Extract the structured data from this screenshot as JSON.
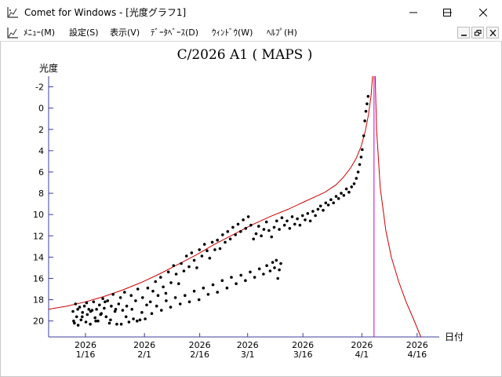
{
  "window": {
    "title": "Comet for Windows - [光度グラフ1]",
    "controls": {
      "minimize": "minimize-icon",
      "maximize": "maximize-icon",
      "close": "close-icon"
    }
  },
  "menu": {
    "items": [
      {
        "label": "ﾒﾆｭｰ(M)"
      },
      {
        "label": "設定(S)"
      },
      {
        "label": "表示(V)"
      },
      {
        "label": "ﾃﾞｰﾀﾍﾞｰｽ(D)"
      },
      {
        "label": "ｳｨﾝﾄﾞｳ(W)"
      },
      {
        "label": "ﾍﾙﾌﾟ(H)"
      }
    ],
    "mdi_controls": {
      "minimize": "mdi-minimize-icon",
      "restore": "mdi-restore-icon",
      "close": "mdi-close-icon"
    }
  },
  "colors": {
    "axis": "#3c3c9c",
    "curve": "#cc0000",
    "perihelion_line": "#cc00cc",
    "points": "#000000"
  },
  "chart_data": {
    "type": "scatter",
    "title": "C/2026 A1 ( MAPS )",
    "ylabel": "光度",
    "xlabel": "日付",
    "y_inverted": true,
    "ylim": [
      -3,
      21.5
    ],
    "y_ticks": [
      "-2",
      "0",
      "2",
      "4",
      "6",
      "8",
      "10",
      "12",
      "14",
      "16",
      "18",
      "20"
    ],
    "x_ticks": [
      {
        "year": "2026",
        "date": "1/16"
      },
      {
        "year": "2026",
        "date": "2/1"
      },
      {
        "year": "2026",
        "date": "2/16"
      },
      {
        "year": "2026",
        "date": "3/1"
      },
      {
        "year": "2026",
        "date": "3/16"
      },
      {
        "year": "2026",
        "date": "4/1"
      },
      {
        "year": "2026",
        "date": "4/16"
      }
    ],
    "x_tick_days": [
      0,
      16,
      31,
      44,
      59,
      75,
      90
    ],
    "xlim": [
      -10,
      96
    ],
    "perihelion_day": 78.3,
    "series": [
      {
        "values": [
          [
            -3.4,
            19.1
          ],
          [
            -3.0,
            20.2
          ],
          [
            -2.7,
            18.4
          ],
          [
            -2.4,
            19.6
          ],
          [
            -2.0,
            20.4
          ],
          [
            -1.6,
            18.7
          ],
          [
            -1.2,
            19.9
          ],
          [
            -0.8,
            19.2
          ],
          [
            -0.3,
            18.6
          ],
          [
            0.1,
            20.1
          ],
          [
            0.5,
            19.4
          ],
          [
            0.9,
            18.9
          ],
          [
            1.3,
            20.3
          ],
          [
            1.8,
            19.0
          ],
          [
            2.2,
            18.2
          ],
          [
            2.6,
            19.7
          ],
          [
            3.0,
            18.9
          ],
          [
            3.4,
            20.0
          ],
          [
            3.8,
            18.5
          ],
          [
            4.3,
            19.3
          ],
          [
            4.7,
            17.9
          ],
          [
            5.1,
            18.8
          ],
          [
            5.6,
            19.6
          ],
          [
            6.0,
            18.1
          ],
          [
            6.5,
            20.2
          ],
          [
            7.0,
            18.6
          ],
          [
            7.5,
            17.5
          ],
          [
            8.0,
            19.1
          ],
          [
            8.5,
            20.3
          ],
          [
            9.0,
            18.4
          ],
          [
            9.5,
            17.8
          ],
          [
            10.1,
            19.0
          ],
          [
            10.6,
            17.3
          ],
          [
            11.2,
            18.6
          ],
          [
            11.8,
            20.1
          ],
          [
            12.4,
            17.6
          ],
          [
            13.0,
            19.8
          ],
          [
            13.6,
            18.1
          ],
          [
            14.2,
            17.0
          ],
          [
            14.8,
            19.9
          ],
          [
            15.5,
            17.8
          ],
          [
            16.2,
            19.8
          ],
          [
            16.9,
            16.9
          ],
          [
            17.6,
            18.2
          ],
          [
            18.3,
            17.2
          ],
          [
            19.0,
            16.3
          ],
          [
            19.7,
            17.6
          ],
          [
            20.4,
            15.9
          ],
          [
            21.1,
            16.8
          ],
          [
            21.8,
            17.4
          ],
          [
            22.5,
            15.4
          ],
          [
            23.2,
            16.4
          ],
          [
            23.9,
            14.8
          ],
          [
            24.6,
            15.6
          ],
          [
            25.3,
            16.5
          ],
          [
            26.0,
            14.6
          ],
          [
            26.7,
            15.3
          ],
          [
            27.4,
            13.9
          ],
          [
            28.1,
            14.9
          ],
          [
            28.8,
            13.6
          ],
          [
            29.5,
            14.3
          ],
          [
            30.2,
            15.0
          ],
          [
            30.9,
            13.3
          ],
          [
            31.6,
            13.9
          ],
          [
            32.3,
            12.8
          ],
          [
            33.0,
            13.4
          ],
          [
            33.7,
            14.1
          ],
          [
            34.4,
            12.6
          ],
          [
            35.1,
            13.3
          ],
          [
            35.8,
            12.4
          ],
          [
            36.5,
            13.2
          ],
          [
            37.2,
            11.9
          ],
          [
            37.9,
            12.6
          ],
          [
            38.6,
            11.6
          ],
          [
            39.3,
            12.3
          ],
          [
            40.0,
            11.2
          ],
          [
            40.7,
            11.9
          ],
          [
            41.4,
            10.9
          ],
          [
            42.1,
            11.6
          ],
          [
            42.8,
            10.5
          ],
          [
            43.5,
            11.3
          ],
          [
            44.2,
            10.2
          ],
          [
            44.9,
            11.0
          ],
          [
            45.6,
            12.3
          ],
          [
            46.3,
            11.8
          ],
          [
            47.0,
            11.1
          ],
          [
            47.7,
            12.0
          ],
          [
            48.4,
            11.4
          ],
          [
            49.1,
            10.7
          ],
          [
            49.8,
            11.5
          ],
          [
            50.5,
            12.1
          ],
          [
            51.2,
            11.2
          ],
          [
            51.9,
            10.6
          ],
          [
            52.6,
            11.4
          ],
          [
            53.3,
            10.3
          ],
          [
            54.0,
            11.0
          ],
          [
            54.7,
            10.6
          ],
          [
            55.4,
            11.3
          ],
          [
            56.1,
            10.2
          ],
          [
            56.8,
            10.9
          ],
          [
            57.5,
            10.4
          ],
          [
            58.2,
            11.0
          ],
          [
            58.9,
            10.1
          ],
          [
            59.6,
            10.5
          ],
          [
            60.3,
            9.9
          ],
          [
            61.0,
            10.6
          ],
          [
            61.7,
            9.7
          ],
          [
            62.4,
            10.1
          ],
          [
            63.1,
            9.5
          ],
          [
            63.8,
            9.2
          ],
          [
            64.5,
            9.6
          ],
          [
            65.2,
            8.9
          ],
          [
            65.9,
            9.1
          ],
          [
            66.6,
            8.6
          ],
          [
            67.3,
            8.9
          ],
          [
            68.0,
            8.3
          ],
          [
            68.7,
            8.5
          ],
          [
            69.4,
            8.0
          ],
          [
            70.1,
            8.2
          ],
          [
            70.8,
            7.6
          ],
          [
            71.5,
            7.9
          ],
          [
            72.2,
            7.4
          ],
          [
            72.9,
            7.1
          ],
          [
            73.5,
            6.6
          ],
          [
            74.0,
            6.0
          ],
          [
            74.4,
            5.3
          ],
          [
            74.8,
            4.6
          ],
          [
            75.1,
            3.9
          ],
          [
            75.5,
            2.6
          ],
          [
            75.8,
            1.2
          ],
          [
            76.1,
            0.3
          ],
          [
            76.4,
            -0.4
          ],
          [
            76.7,
            -1.1
          ]
        ]
      },
      {
        "values": [
          [
            -3.2,
            20.0
          ],
          [
            -2.1,
            18.9
          ],
          [
            -0.9,
            19.6
          ],
          [
            0.3,
            18.3
          ],
          [
            1.4,
            19.1
          ],
          [
            2.8,
            20.0
          ],
          [
            4.1,
            19.4
          ],
          [
            5.3,
            18.2
          ],
          [
            6.8,
            19.9
          ],
          [
            8.2,
            18.9
          ],
          [
            9.7,
            20.3
          ],
          [
            11.0,
            19.6
          ],
          [
            12.6,
            18.9
          ],
          [
            14.0,
            20.0
          ],
          [
            15.3,
            19.2
          ],
          [
            16.6,
            18.5
          ],
          [
            18.0,
            19.3
          ],
          [
            19.3,
            18.6
          ],
          [
            20.6,
            19.0
          ],
          [
            21.9,
            18.1
          ],
          [
            23.1,
            18.7
          ],
          [
            24.4,
            17.8
          ],
          [
            25.7,
            18.4
          ],
          [
            27.0,
            17.6
          ],
          [
            28.2,
            18.2
          ],
          [
            29.5,
            17.2
          ],
          [
            30.8,
            18.0
          ],
          [
            32.0,
            16.9
          ],
          [
            33.3,
            17.5
          ],
          [
            34.6,
            16.6
          ],
          [
            35.8,
            17.3
          ],
          [
            37.1,
            16.2
          ],
          [
            38.4,
            16.9
          ],
          [
            39.6,
            15.9
          ],
          [
            40.9,
            16.5
          ],
          [
            42.2,
            15.7
          ],
          [
            43.4,
            16.2
          ],
          [
            44.7,
            15.4
          ],
          [
            45.9,
            15.9
          ],
          [
            47.2,
            15.1
          ],
          [
            48.3,
            15.6
          ],
          [
            49.2,
            14.8
          ],
          [
            50.1,
            15.3
          ],
          [
            50.8,
            14.5
          ],
          [
            51.3,
            15.0
          ],
          [
            51.8,
            14.3
          ],
          [
            52.2,
            16.0
          ],
          [
            52.6,
            15.2
          ],
          [
            53.0,
            14.6
          ]
        ]
      }
    ],
    "curve": {
      "points": [
        [
          -10,
          18.9
        ],
        [
          -5,
          18.6
        ],
        [
          0,
          18.2
        ],
        [
          5,
          17.7
        ],
        [
          10,
          17.1
        ],
        [
          15,
          16.4
        ],
        [
          20,
          15.6
        ],
        [
          25,
          14.7
        ],
        [
          30,
          13.8
        ],
        [
          35,
          12.8
        ],
        [
          40,
          11.9
        ],
        [
          45,
          11.0
        ],
        [
          50,
          10.2
        ],
        [
          55,
          9.5
        ],
        [
          60,
          8.7
        ],
        [
          65,
          7.9
        ],
        [
          68,
          7.2
        ],
        [
          70,
          6.5
        ],
        [
          72,
          5.6
        ],
        [
          73.5,
          4.7
        ],
        [
          74.8,
          3.6
        ],
        [
          75.9,
          2.2
        ],
        [
          76.8,
          0.6
        ],
        [
          77.5,
          -1.2
        ],
        [
          77.9,
          -3
        ]
      ],
      "decline": [
        [
          78.6,
          -3
        ],
        [
          79.0,
          2.0
        ],
        [
          80.0,
          7.5
        ],
        [
          81.5,
          11.5
        ],
        [
          83.0,
          14.0
        ],
        [
          85.0,
          16.3
        ],
        [
          87.0,
          18.2
        ],
        [
          89.0,
          19.8
        ],
        [
          91.0,
          21.5
        ]
      ]
    }
  }
}
